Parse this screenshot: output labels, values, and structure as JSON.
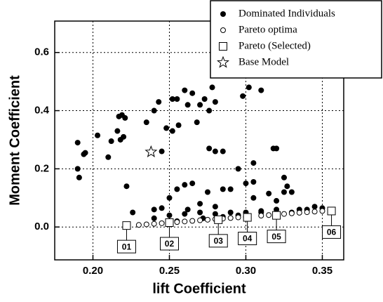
{
  "chart_data": {
    "type": "scatter",
    "xlabel": "lift Coefficient",
    "ylabel": "Moment Coefficient",
    "xlim": [
      0.175,
      0.364
    ],
    "ylim": [
      -0.113,
      0.708
    ],
    "xticks": [
      {
        "value": 0.2,
        "label": "0.20"
      },
      {
        "value": 0.25,
        "label": "0.25"
      },
      {
        "value": 0.3,
        "label": "0.30"
      },
      {
        "value": 0.35,
        "label": "0.35"
      }
    ],
    "yticks": [
      {
        "value": 0,
        "label": "0.0"
      },
      {
        "value": 0.2,
        "label": "0.2"
      },
      {
        "value": 0.4,
        "label": "0.4"
      },
      {
        "value": 0.6,
        "label": "0.6"
      }
    ],
    "grid": true,
    "legend_position": "top-right",
    "series": [
      {
        "name": "Dominated Individuals",
        "marker": "filled-circle",
        "color": "#000000",
        "x": [
          0.19,
          0.19,
          0.191,
          0.194,
          0.195,
          0.203,
          0.21,
          0.212,
          0.216,
          0.217,
          0.219,
          0.221,
          0.222,
          0.218,
          0.22,
          0.226,
          0.235,
          0.24,
          0.243,
          0.245,
          0.248,
          0.252,
          0.255,
          0.252,
          0.256,
          0.26,
          0.262,
          0.265,
          0.27,
          0.273,
          0.276,
          0.278,
          0.28,
          0.276,
          0.28,
          0.285,
          0.268,
          0.298,
          0.302,
          0.31,
          0.318,
          0.32,
          0.305,
          0.295,
          0.3,
          0.305,
          0.24,
          0.245,
          0.25,
          0.255,
          0.26,
          0.265,
          0.27,
          0.275,
          0.28,
          0.285,
          0.29,
          0.295,
          0.3,
          0.305,
          0.31,
          0.315,
          0.32,
          0.325,
          0.33,
          0.335,
          0.34,
          0.345,
          0.35,
          0.24,
          0.25,
          0.26,
          0.27,
          0.28,
          0.29,
          0.31,
          0.32,
          0.33,
          0.262,
          0.255,
          0.272,
          0.285,
          0.325,
          0.327
        ],
        "y": [
          0.29,
          0.2,
          0.17,
          0.25,
          0.255,
          0.315,
          0.24,
          0.295,
          0.33,
          0.38,
          0.385,
          0.375,
          0.14,
          0.3,
          0.31,
          0.05,
          0.36,
          0.4,
          0.43,
          0.26,
          0.34,
          0.44,
          0.44,
          0.33,
          0.35,
          0.47,
          0.42,
          0.46,
          0.42,
          0.44,
          0.4,
          0.48,
          0.43,
          0.27,
          0.26,
          0.26,
          0.36,
          0.45,
          0.48,
          0.47,
          0.27,
          0.27,
          0.22,
          0.2,
          0.15,
          0.155,
          0.06,
          0.065,
          0.1,
          0.13,
          0.145,
          0.15,
          0.08,
          0.12,
          0.07,
          0.13,
          0.13,
          0.04,
          0.05,
          0.1,
          0.05,
          0.115,
          0.09,
          0.12,
          0.12,
          0.06,
          0.06,
          0.07,
          0.065,
          0.03,
          0.04,
          0.045,
          0.05,
          0.045,
          0.05,
          0.055,
          0.06,
          0.05,
          0.06,
          0.02,
          0.03,
          0.035,
          0.17,
          0.14
        ]
      },
      {
        "name": "Pareto optima",
        "marker": "open-circle",
        "color": "#000000",
        "x": [
          0.23,
          0.235,
          0.24,
          0.245,
          0.25,
          0.255,
          0.26,
          0.265,
          0.27,
          0.275,
          0.28,
          0.285,
          0.29,
          0.295,
          0.3,
          0.31,
          0.315,
          0.32,
          0.325,
          0.33,
          0.335,
          0.34,
          0.345,
          0.35
        ],
        "y": [
          0.007,
          0.009,
          0.011,
          0.013,
          0.015,
          0.017,
          0.019,
          0.021,
          0.023,
          0.025,
          0.027,
          0.029,
          0.031,
          0.033,
          0.035,
          0.039,
          0.041,
          0.043,
          0.045,
          0.047,
          0.049,
          0.051,
          0.053,
          0.055
        ]
      },
      {
        "name": "Pareto (Selected)",
        "marker": "open-square",
        "color": "#000000",
        "x": [
          0.222,
          0.25,
          0.282,
          0.301,
          0.32,
          0.356
        ],
        "y": [
          0.005,
          0.015,
          0.025,
          0.033,
          0.04,
          0.055
        ],
        "point_labels": [
          "01",
          "02",
          "03",
          "04",
          "05",
          "06"
        ]
      },
      {
        "name": "Base Model",
        "marker": "open-star",
        "color": "#000000",
        "x": [
          0.238
        ],
        "y": [
          0.258
        ]
      }
    ]
  }
}
